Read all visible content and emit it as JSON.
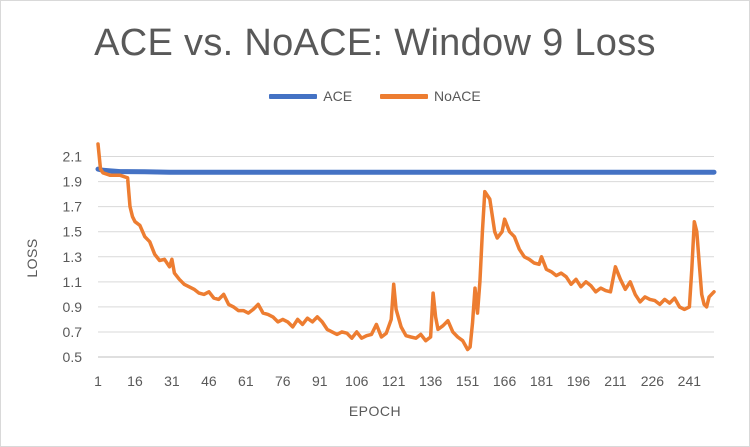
{
  "chart_data": {
    "type": "line",
    "title": "ACE vs. NoACE: Window 9 Loss",
    "xlabel": "EPOCH",
    "ylabel": "LOSS",
    "x_tick_labels": [
      "1",
      "16",
      "31",
      "46",
      "61",
      "76",
      "91",
      "106",
      "121",
      "136",
      "151",
      "166",
      "181",
      "196",
      "211",
      "226",
      "241"
    ],
    "y_tick_labels": [
      "0.5",
      "0.7",
      "0.9",
      "1.1",
      "1.3",
      "1.5",
      "1.7",
      "1.9",
      "2.1"
    ],
    "xlim": [
      1,
      251
    ],
    "ylim": [
      0.5,
      2.2
    ],
    "grid": "horizontal",
    "legend_position": "top",
    "series": [
      {
        "name": "ACE",
        "color": "#4472C4",
        "points": [
          [
            1,
            2.0
          ],
          [
            3,
            1.99
          ],
          [
            6,
            1.985
          ],
          [
            10,
            1.98
          ],
          [
            20,
            1.978
          ],
          [
            30,
            1.975
          ],
          [
            45,
            1.975
          ],
          [
            100,
            1.975
          ],
          [
            200,
            1.975
          ],
          [
            251,
            1.975
          ]
        ]
      },
      {
        "name": "NoACE",
        "color": "#ED7D31",
        "points": [
          [
            1,
            2.2
          ],
          [
            2,
            2.0
          ],
          [
            3,
            1.97
          ],
          [
            6,
            1.95
          ],
          [
            10,
            1.95
          ],
          [
            13,
            1.93
          ],
          [
            14,
            1.7
          ],
          [
            15,
            1.62
          ],
          [
            16,
            1.58
          ],
          [
            18,
            1.55
          ],
          [
            20,
            1.46
          ],
          [
            22,
            1.42
          ],
          [
            24,
            1.32
          ],
          [
            26,
            1.27
          ],
          [
            28,
            1.28
          ],
          [
            30,
            1.22
          ],
          [
            31,
            1.28
          ],
          [
            32,
            1.17
          ],
          [
            34,
            1.12
          ],
          [
            36,
            1.08
          ],
          [
            38,
            1.06
          ],
          [
            40,
            1.04
          ],
          [
            42,
            1.01
          ],
          [
            44,
            1.0
          ],
          [
            46,
            1.02
          ],
          [
            48,
            0.97
          ],
          [
            50,
            0.96
          ],
          [
            52,
            1.0
          ],
          [
            54,
            0.92
          ],
          [
            56,
            0.9
          ],
          [
            58,
            0.87
          ],
          [
            60,
            0.87
          ],
          [
            62,
            0.85
          ],
          [
            64,
            0.88
          ],
          [
            66,
            0.92
          ],
          [
            68,
            0.85
          ],
          [
            70,
            0.84
          ],
          [
            72,
            0.82
          ],
          [
            74,
            0.78
          ],
          [
            76,
            0.8
          ],
          [
            78,
            0.78
          ],
          [
            80,
            0.74
          ],
          [
            82,
            0.8
          ],
          [
            84,
            0.76
          ],
          [
            86,
            0.81
          ],
          [
            88,
            0.78
          ],
          [
            90,
            0.82
          ],
          [
            92,
            0.78
          ],
          [
            94,
            0.72
          ],
          [
            96,
            0.7
          ],
          [
            98,
            0.68
          ],
          [
            100,
            0.7
          ],
          [
            102,
            0.69
          ],
          [
            104,
            0.65
          ],
          [
            106,
            0.7
          ],
          [
            108,
            0.65
          ],
          [
            110,
            0.67
          ],
          [
            112,
            0.68
          ],
          [
            114,
            0.76
          ],
          [
            116,
            0.66
          ],
          [
            118,
            0.69
          ],
          [
            120,
            0.8
          ],
          [
            121,
            1.08
          ],
          [
            122,
            0.88
          ],
          [
            124,
            0.74
          ],
          [
            126,
            0.67
          ],
          [
            128,
            0.66
          ],
          [
            130,
            0.65
          ],
          [
            132,
            0.68
          ],
          [
            134,
            0.63
          ],
          [
            136,
            0.66
          ],
          [
            137,
            1.01
          ],
          [
            138,
            0.82
          ],
          [
            139,
            0.72
          ],
          [
            141,
            0.75
          ],
          [
            143,
            0.79
          ],
          [
            145,
            0.7
          ],
          [
            147,
            0.66
          ],
          [
            149,
            0.63
          ],
          [
            151,
            0.56
          ],
          [
            152,
            0.58
          ],
          [
            153,
            0.77
          ],
          [
            154,
            1.05
          ],
          [
            155,
            0.85
          ],
          [
            156,
            1.1
          ],
          [
            157,
            1.5
          ],
          [
            158,
            1.82
          ],
          [
            160,
            1.76
          ],
          [
            162,
            1.5
          ],
          [
            163,
            1.45
          ],
          [
            165,
            1.5
          ],
          [
            166,
            1.6
          ],
          [
            168,
            1.5
          ],
          [
            170,
            1.46
          ],
          [
            172,
            1.36
          ],
          [
            174,
            1.3
          ],
          [
            176,
            1.28
          ],
          [
            178,
            1.25
          ],
          [
            180,
            1.24
          ],
          [
            181,
            1.3
          ],
          [
            183,
            1.2
          ],
          [
            185,
            1.18
          ],
          [
            187,
            1.15
          ],
          [
            189,
            1.17
          ],
          [
            191,
            1.14
          ],
          [
            193,
            1.08
          ],
          [
            195,
            1.12
          ],
          [
            197,
            1.06
          ],
          [
            199,
            1.1
          ],
          [
            201,
            1.07
          ],
          [
            203,
            1.02
          ],
          [
            205,
            1.05
          ],
          [
            207,
            1.03
          ],
          [
            209,
            1.02
          ],
          [
            211,
            1.22
          ],
          [
            213,
            1.12
          ],
          [
            215,
            1.04
          ],
          [
            217,
            1.1
          ],
          [
            219,
            1.0
          ],
          [
            221,
            0.94
          ],
          [
            223,
            0.98
          ],
          [
            225,
            0.96
          ],
          [
            227,
            0.95
          ],
          [
            229,
            0.92
          ],
          [
            231,
            0.96
          ],
          [
            233,
            0.93
          ],
          [
            235,
            0.97
          ],
          [
            237,
            0.9
          ],
          [
            239,
            0.88
          ],
          [
            241,
            0.9
          ],
          [
            242,
            1.2
          ],
          [
            243,
            1.58
          ],
          [
            244,
            1.5
          ],
          [
            245,
            1.25
          ],
          [
            246,
            1.0
          ],
          [
            247,
            0.92
          ],
          [
            248,
            0.9
          ],
          [
            249,
            0.98
          ],
          [
            251,
            1.02
          ]
        ]
      }
    ]
  }
}
